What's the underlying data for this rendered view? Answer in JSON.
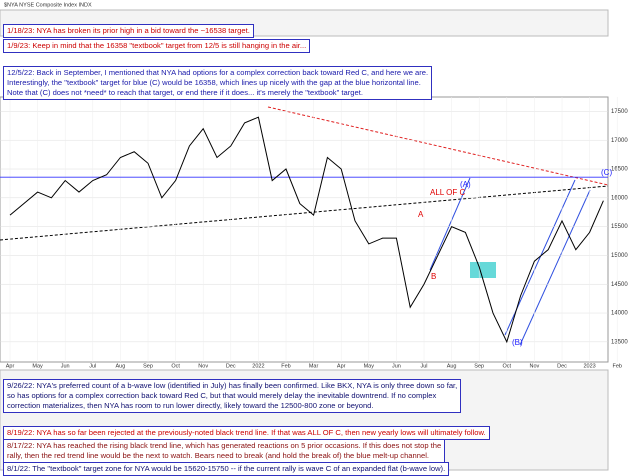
{
  "chart_data": {
    "type": "line",
    "header": "$NYA NYSE Composite Index INDX",
    "color": "#000000",
    "values": [
      15700,
      15900,
      16100,
      16000,
      16300,
      16100,
      16300,
      16400,
      16700,
      16800,
      16600,
      16000,
      16300,
      16900,
      17200,
      16700,
      16900,
      17300,
      17400,
      16300,
      16500,
      15900,
      15700,
      16700,
      16500,
      15600,
      15200,
      15300,
      15300,
      14100,
      14500,
      15000,
      15500,
      15400,
      14800,
      14000,
      13500,
      14300,
      14900,
      15100,
      15600,
      15100,
      15400,
      15950
    ],
    "xticks": [
      "Apr",
      "May",
      "Jun",
      "Jul",
      "Aug",
      "Sep",
      "Oct",
      "Nov",
      "Dec",
      "2022",
      "Feb",
      "Mar",
      "Apr",
      "May",
      "Jun",
      "Jul",
      "Aug",
      "Sep",
      "Oct",
      "Nov",
      "Dec",
      "2023",
      "Feb"
    ],
    "ylim": [
      13150,
      17750
    ],
    "yticks": [
      13500,
      14000,
      14500,
      15000,
      15500,
      16000,
      16500,
      17000,
      17500
    ],
    "reference_line": {
      "value": 16358,
      "color": "#3333ff"
    },
    "annotations": [
      {
        "text": "(A)",
        "color": "#1a1aff"
      },
      {
        "text": "ALL OF C",
        "color": "#e00000"
      },
      {
        "text": "A",
        "color": "#e00000"
      },
      {
        "text": "B",
        "color": "#e00000"
      },
      {
        "text": "(B)",
        "color": "#1a1aff"
      },
      {
        "text": "(C)",
        "color": "#1a1aff"
      }
    ]
  },
  "notes": [
    {
      "color": "#cc0000",
      "lines": [
        "1/18/23:  NYA has broken its prior high in a bid toward the ~16538 target."
      ]
    },
    {
      "color": "#cc0000",
      "lines": [
        "1/9/23:  Keep in mind that the 16358 \"textbook\" target from 12/5 is still hanging in the air..."
      ]
    },
    {
      "color": "#1a1aaa",
      "lines": [
        "12/5/22:  Back in September, I mentioned that NYA had options for a complex correction back toward Red C, and here we are.",
        "Interestingly, the \"textbook\" target for blue (C) would be 16358, which lines up nicely with the gap at the blue horizontal line.",
        "Note that (C) does not *need* to reach that target, or end there if it does... it's merely the \"textbook\" target."
      ]
    },
    {
      "color": "#101070",
      "lines": [
        "9/26/22:  NYA's preferred count of a b-wave low (identified in July) has finally been confirmed.  Like BKX, NYA is only three down so far,",
        "so has options for a complex correction back toward Red C, but that would merely delay the inevitable downtrend.  If no complex",
        "correction materializes, then NYA has room to run lower directly, likely toward the 12500-800 zone or beyond."
      ]
    },
    {
      "color": "#cc0000",
      "lines": [
        "8/19/22:  NYA has so far been rejected at the previously-noted black trend line.  If that was ALL OF C, then new yearly lows will ultimately follow."
      ]
    },
    {
      "color": "#8a1010",
      "lines": [
        "8/17/22:  NYA has reached the rising black trend line, which has generated reactions on 5 prior occasions.  If this does not stop the",
        "rally, then the red trend line would be the next to watch.  Bears need to break (and hold the break of) the blue melt-up channel."
      ]
    },
    {
      "color": "#101070",
      "lines": [
        "8/1/22:  The \"textbook\" target zone for NYA would be 15620-15750 -- if the current rally is wave C of an expanded flat (b-wave low)."
      ]
    }
  ]
}
